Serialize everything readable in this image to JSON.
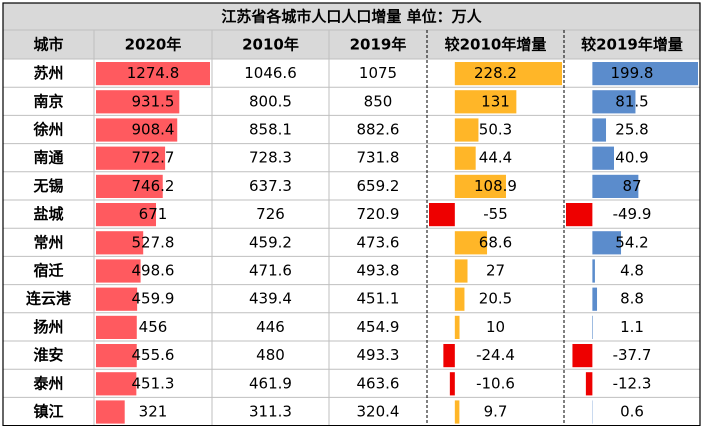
{
  "title": "江苏省各城市人口人口增量   单位：万人",
  "headers": [
    "城市",
    "2020年",
    "2010年",
    "2019年",
    "较2010年增量",
    "较2019年增量"
  ],
  "colors": {
    "title_bg": "#d9d9d9",
    "header_bg": "#d9d9d9",
    "grid": "#bfbfbf",
    "border": "#000000",
    "bar_2020": "#ff5a5f",
    "bar_inc_2010_pos": "#ffb628",
    "bar_inc_2019_pos": "#5b8ccc",
    "bar_negative": "#ee0000"
  },
  "chart_data": {
    "type": "table",
    "columns": [
      "城市",
      "2020年",
      "2010年",
      "2019年",
      "较2010年增量",
      "较2019年增量"
    ],
    "rows": [
      {
        "city": "苏州",
        "y2020": "1274.8",
        "y2010": "1046.6",
        "y2019": "1075",
        "inc2010": "228.2",
        "inc2019": "199.8"
      },
      {
        "city": "南京",
        "y2020": "931.5",
        "y2010": "800.5",
        "y2019": "850",
        "inc2010": "131",
        "inc2019": "81.5"
      },
      {
        "city": "徐州",
        "y2020": "908.4",
        "y2010": "858.1",
        "y2019": "882.6",
        "inc2010": "50.3",
        "inc2019": "25.8"
      },
      {
        "city": "南通",
        "y2020": "772.7",
        "y2010": "728.3",
        "y2019": "731.8",
        "inc2010": "44.4",
        "inc2019": "40.9"
      },
      {
        "city": "无锡",
        "y2020": "746.2",
        "y2010": "637.3",
        "y2019": "659.2",
        "inc2010": "108.9",
        "inc2019": "87"
      },
      {
        "city": "盐城",
        "y2020": "671",
        "y2010": "726",
        "y2019": "720.9",
        "inc2010": "-55",
        "inc2019": "-49.9"
      },
      {
        "city": "常州",
        "y2020": "527.8",
        "y2010": "459.2",
        "y2019": "473.6",
        "inc2010": "68.6",
        "inc2019": "54.2"
      },
      {
        "city": "宿迁",
        "y2020": "498.6",
        "y2010": "471.6",
        "y2019": "493.8",
        "inc2010": "27",
        "inc2019": "4.8"
      },
      {
        "city": "连云港",
        "y2020": "459.9",
        "y2010": "439.4",
        "y2019": "451.1",
        "inc2010": "20.5",
        "inc2019": "8.8"
      },
      {
        "city": "扬州",
        "y2020": "456",
        "y2010": "446",
        "y2019": "454.9",
        "inc2010": "10",
        "inc2019": "1.1"
      },
      {
        "city": "淮安",
        "y2020": "455.6",
        "y2010": "480",
        "y2019": "493.3",
        "inc2010": "-24.4",
        "inc2019": "-37.7"
      },
      {
        "city": "泰州",
        "y2020": "451.3",
        "y2010": "461.9",
        "y2019": "463.6",
        "inc2010": "-10.6",
        "inc2019": "-12.3"
      },
      {
        "city": "镇江",
        "y2020": "321",
        "y2010": "311.3",
        "y2019": "320.4",
        "inc2010": "9.7",
        "inc2019": "0.6"
      }
    ]
  }
}
